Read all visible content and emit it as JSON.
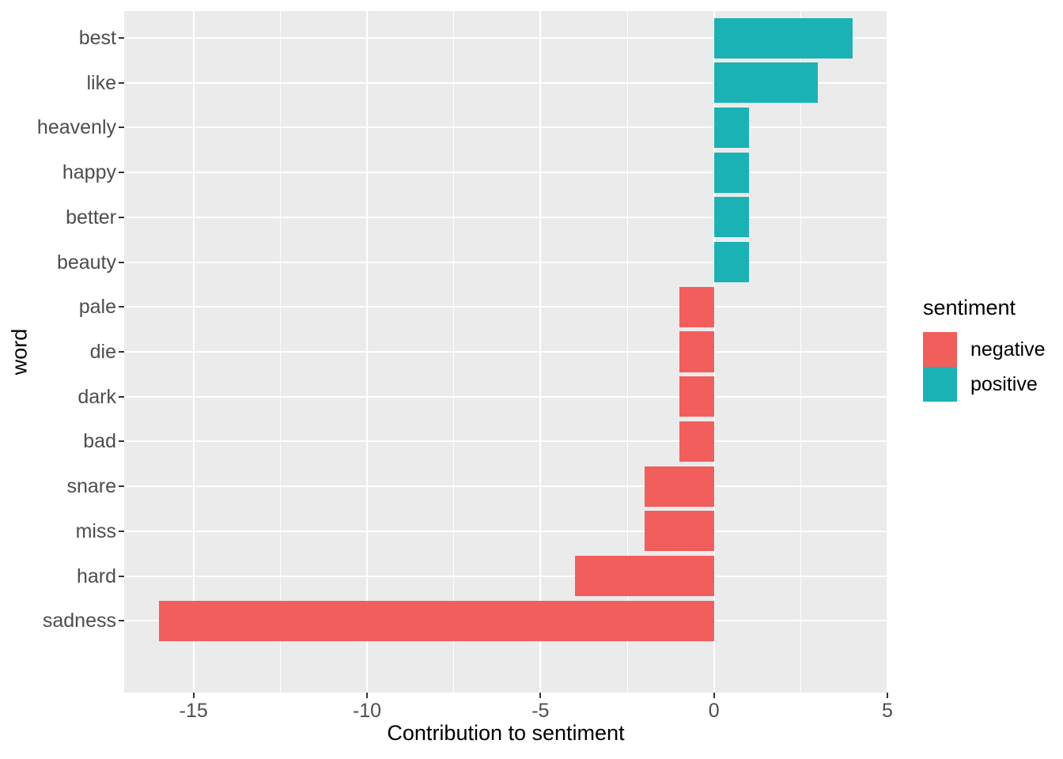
{
  "figure": {
    "background": "#FFFFFF",
    "panel_background": "#EBEBEB",
    "grid_color": "#FFFFFF",
    "tick_color": "#333333",
    "tick_label_color": "#4D4D4D"
  },
  "chart_data": {
    "type": "bar",
    "orientation": "horizontal",
    "title": "",
    "xlabel": "Contribution to sentiment",
    "ylabel": "word",
    "xlim": [
      -17,
      5
    ],
    "x_ticks": [
      -15,
      -10,
      -5,
      0,
      5
    ],
    "x_tick_labels": [
      "-15",
      "-10",
      "-5",
      "0",
      "5"
    ],
    "grid": true,
    "categories": [
      "best",
      "like",
      "heavenly",
      "happy",
      "better",
      "beauty",
      "pale",
      "die",
      "dark",
      "bad",
      "snare",
      "miss",
      "hard",
      "sadness"
    ],
    "values": [
      4,
      3,
      1,
      1,
      1,
      1,
      -1,
      -1,
      -1,
      -1,
      -2,
      -2,
      -4,
      -16
    ],
    "sentiments": [
      "positive",
      "positive",
      "positive",
      "positive",
      "positive",
      "positive",
      "negative",
      "negative",
      "negative",
      "negative",
      "negative",
      "negative",
      "negative",
      "negative"
    ],
    "colors": {
      "negative": "#F25E5B",
      "positive": "#1AB2B5"
    },
    "legend": {
      "title": "sentiment",
      "position": "right",
      "items": [
        {
          "label": "negative",
          "color": "#F25E5B"
        },
        {
          "label": "positive",
          "color": "#1AB2B5"
        }
      ]
    }
  }
}
